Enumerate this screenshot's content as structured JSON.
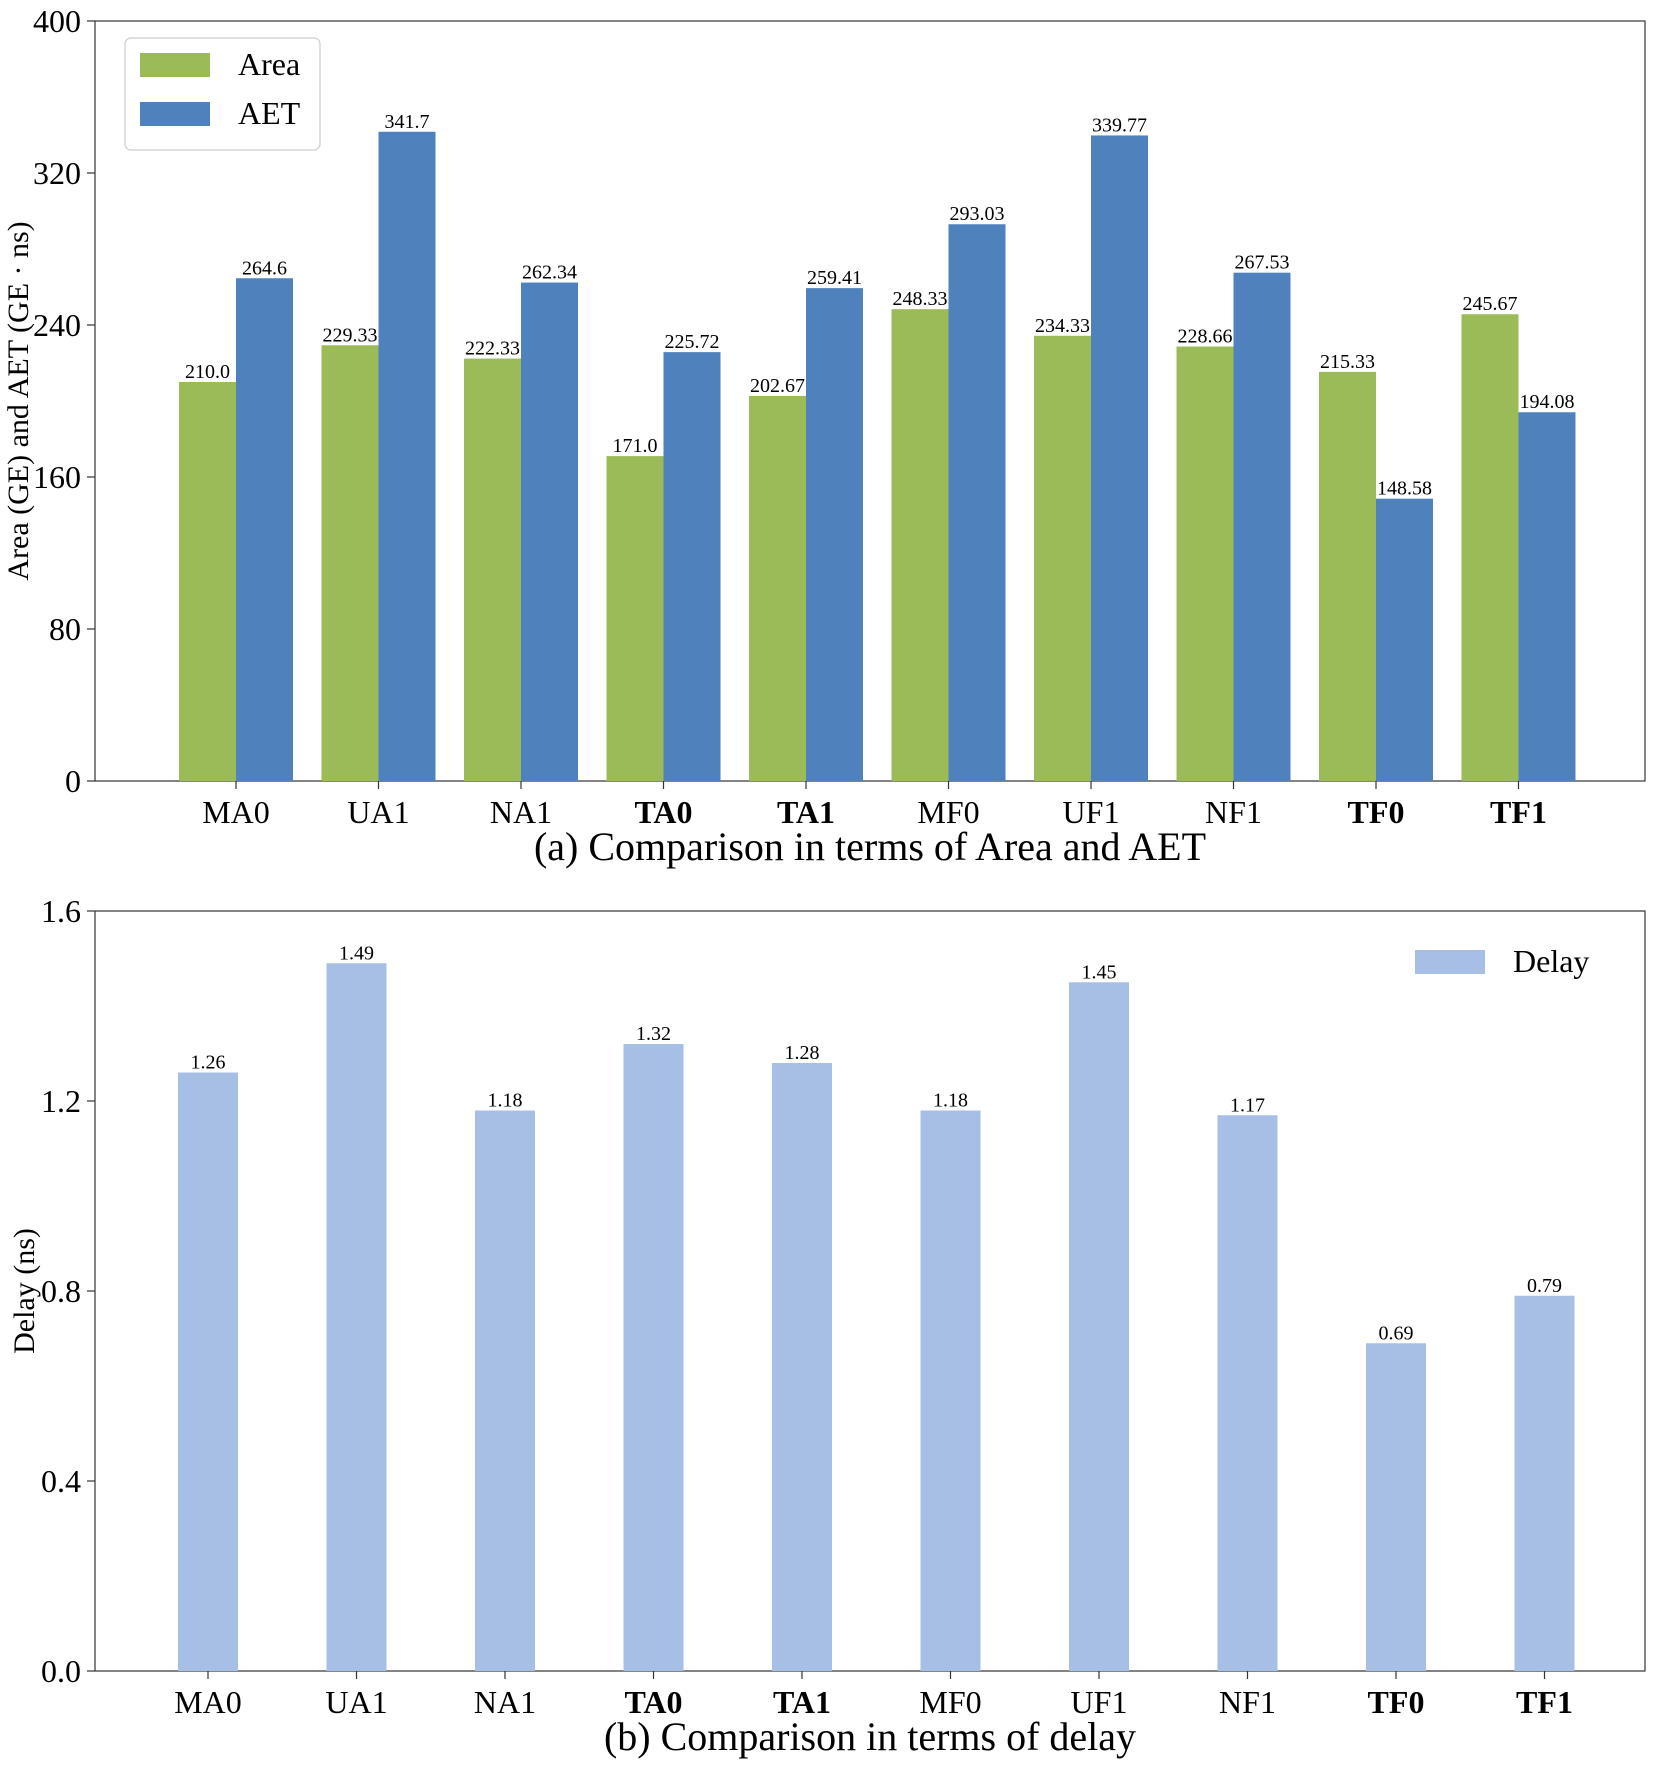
{
  "colors": {
    "area": "#9bbb59",
    "aet": "#4f81bd",
    "delay": "#a7bfe4"
  },
  "chart_data": [
    {
      "type": "bar",
      "categories": [
        "MA0",
        "UA1",
        "NA1",
        "TA0",
        "TA1",
        "MF0",
        "UF1",
        "NF1",
        "TF0",
        "TF1"
      ],
      "bold_categories": [
        "TA0",
        "TA1",
        "TF0",
        "TF1"
      ],
      "series": [
        {
          "name": "Area",
          "values": [
            210.0,
            229.33,
            222.33,
            171.0,
            202.67,
            248.33,
            234.33,
            228.66,
            215.33,
            245.67
          ],
          "labels": [
            "210.0",
            "229.33",
            "222.33",
            "171.0",
            "202.67",
            "248.33",
            "234.33",
            "228.66",
            "215.33",
            "245.67"
          ]
        },
        {
          "name": "AET",
          "values": [
            264.6,
            341.7,
            262.34,
            225.72,
            259.41,
            293.03,
            339.77,
            267.53,
            148.58,
            194.08
          ],
          "labels": [
            "264.6",
            "341.7",
            "262.34",
            "225.72",
            "259.41",
            "293.03",
            "339.77",
            "267.53",
            "148.58",
            "194.08"
          ]
        }
      ],
      "ylabel": "Area (GE) and AET (GE · ns)",
      "xlabel": "",
      "ylim": [
        0,
        400
      ],
      "yticks": [
        "0",
        "80",
        "160",
        "240",
        "320",
        "400"
      ],
      "legend": "top-left",
      "caption": "(a) Comparison in terms of Area and AET"
    },
    {
      "type": "bar",
      "categories": [
        "MA0",
        "UA1",
        "NA1",
        "TA0",
        "TA1",
        "MF0",
        "UF1",
        "NF1",
        "TF0",
        "TF1"
      ],
      "bold_categories": [
        "TA0",
        "TA1",
        "TF0",
        "TF1"
      ],
      "series": [
        {
          "name": "Delay",
          "values": [
            1.26,
            1.49,
            1.18,
            1.32,
            1.28,
            1.18,
            1.45,
            1.17,
            0.69,
            0.79
          ],
          "labels": [
            "1.26",
            "1.49",
            "1.18",
            "1.32",
            "1.28",
            "1.18",
            "1.45",
            "1.17",
            "0.69",
            "0.79"
          ]
        }
      ],
      "ylabel": "Delay (ns)",
      "xlabel": "",
      "ylim": [
        0,
        1.6
      ],
      "yticks": [
        "0.0",
        "0.4",
        "0.8",
        "1.2",
        "1.6"
      ],
      "legend": "top-right",
      "caption": "(b) Comparison in terms of delay"
    }
  ]
}
